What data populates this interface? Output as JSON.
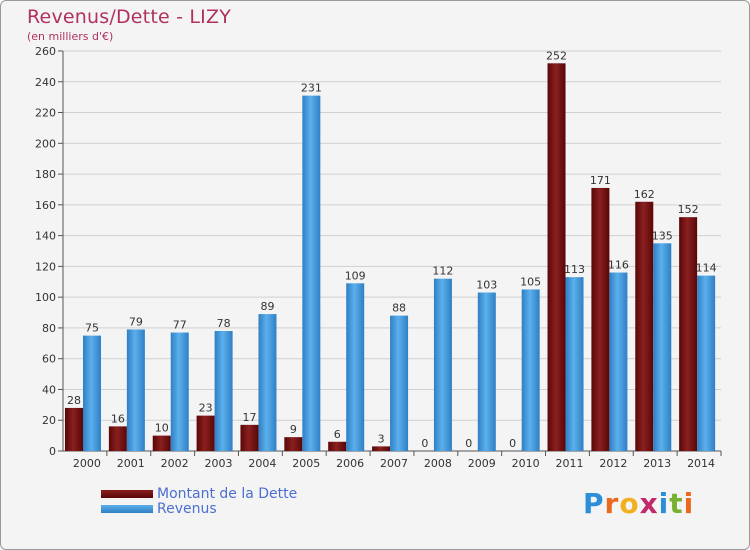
{
  "chart_data": {
    "type": "bar",
    "title": "Revenus/Dette - LIZY",
    "subtitle": "(en milliers d'€)",
    "categories": [
      "2000",
      "2001",
      "2002",
      "2003",
      "2004",
      "2005",
      "2006",
      "2007",
      "2008",
      "2009",
      "2010",
      "2011",
      "2012",
      "2013",
      "2014"
    ],
    "series": [
      {
        "name": "Montant de la Dette",
        "color": "#7a1010",
        "values": [
          28,
          16,
          10,
          23,
          17,
          9,
          6,
          3,
          0,
          0,
          0,
          252,
          171,
          162,
          152
        ]
      },
      {
        "name": "Revenus",
        "color": "#4aa0e0",
        "values": [
          75,
          79,
          77,
          78,
          89,
          231,
          109,
          88,
          112,
          103,
          105,
          113,
          116,
          135,
          114
        ]
      }
    ],
    "ylim": [
      0,
      260
    ],
    "yticks": [
      0,
      20,
      40,
      60,
      80,
      100,
      120,
      140,
      160,
      180,
      200,
      220,
      240,
      260
    ],
    "grid": true,
    "legend": "bottom-left"
  },
  "logo": {
    "text": "Proxiti"
  }
}
